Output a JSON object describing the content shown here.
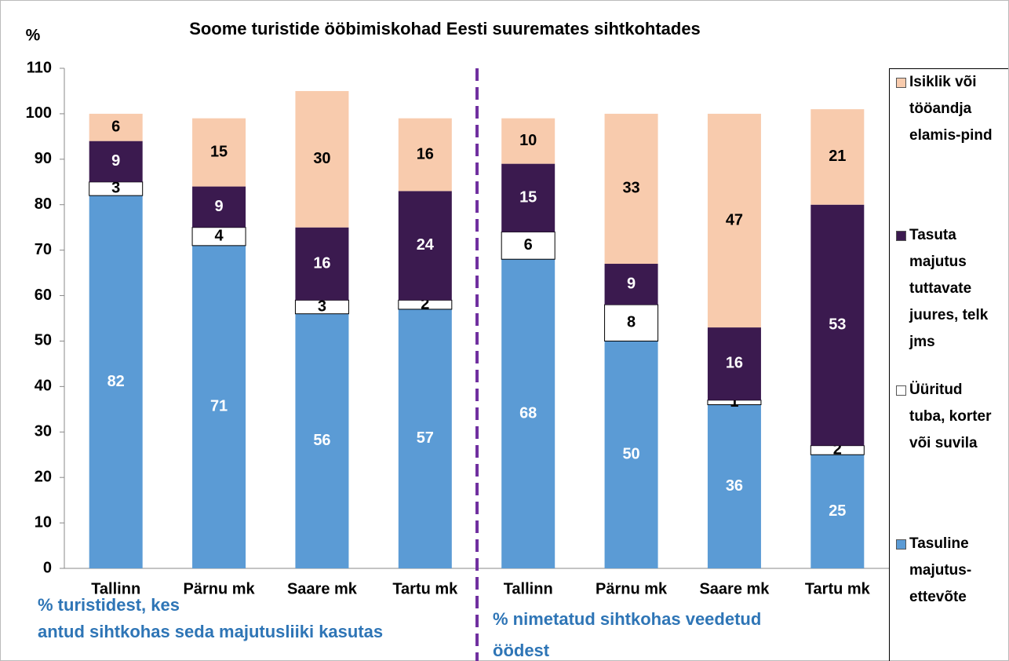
{
  "chart_data": {
    "type": "stacked_bar",
    "title": "Soome turistide ööbimiskohad Eesti suuremates sihtkohtades",
    "y_label": "%",
    "categories": [
      "Tallinn",
      "Pärnu mk",
      "Saare mk",
      "Tartu mk",
      "Tallinn",
      "Pärnu mk",
      "Saare mk",
      "Tartu mk"
    ],
    "series": [
      {
        "name": "Tasuline majutus-ettevõte",
        "color": "#5b9bd5",
        "label_color": "#ffffff",
        "values": [
          82,
          71,
          56,
          57,
          68,
          50,
          36,
          25
        ]
      },
      {
        "name": "Üüritud tuba, korter või suvila",
        "color": "#ffffff",
        "label_color": "#000000",
        "values": [
          3,
          4,
          3,
          2,
          6,
          8,
          1,
          2
        ]
      },
      {
        "name": "Tasuta majutus tuttavate juures, telk jms",
        "color": "#3b1a4f",
        "label_color": "#ffffff",
        "values": [
          9,
          9,
          16,
          24,
          15,
          9,
          16,
          53
        ]
      },
      {
        "name": "Isiklik või tööandja elamis-pind",
        "color": "#f8cbad",
        "label_color": "#000000",
        "values": [
          6,
          15,
          30,
          16,
          10,
          33,
          47,
          21
        ]
      }
    ],
    "ylim": [
      0,
      110
    ],
    "yticks": [
      0,
      10,
      20,
      30,
      40,
      50,
      60,
      70,
      80,
      90,
      100,
      110
    ],
    "grid": false,
    "legend": "right",
    "annotations": [
      "% turistidest, kes",
      "antud sihtkohas seda majutusliiki kasutas",
      "% nimetatud sihtkohas veedetud",
      "öödest"
    ],
    "divider_color": "#7030a0",
    "annotation_color": "#2e75b6"
  }
}
